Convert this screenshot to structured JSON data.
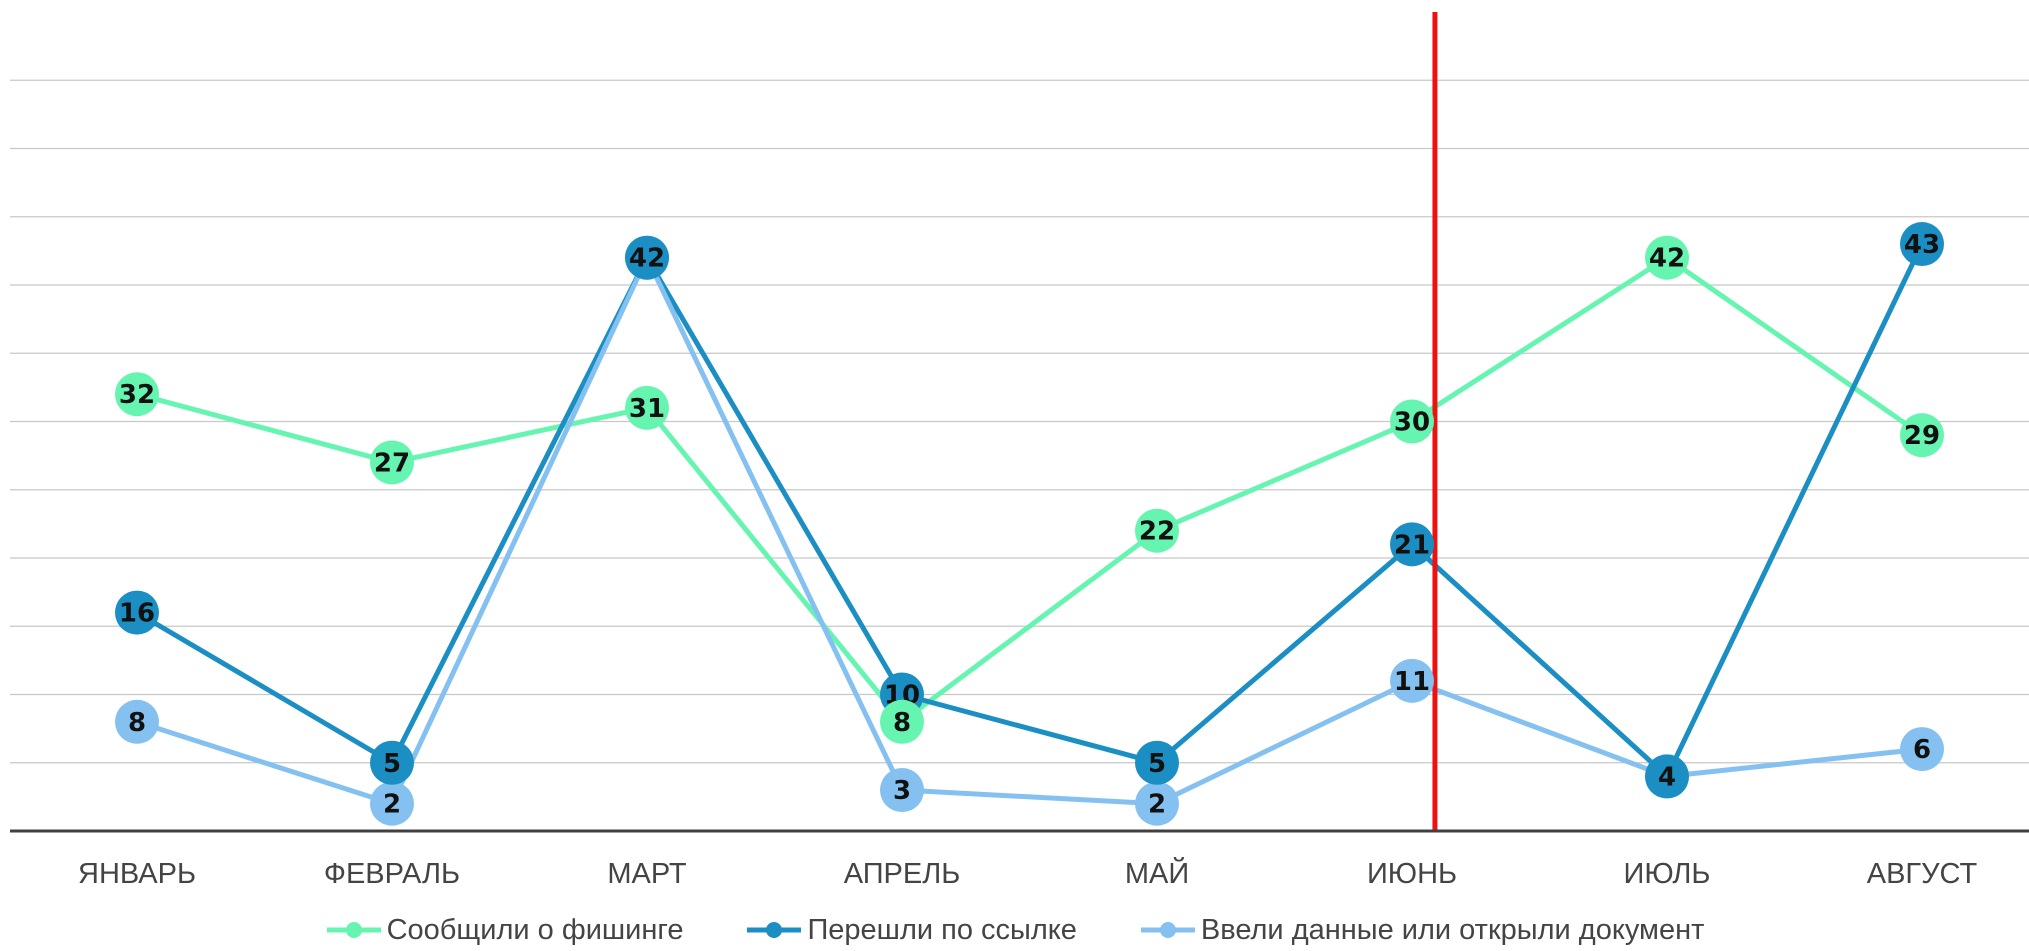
{
  "chart_data": {
    "type": "line",
    "categories": [
      "ЯНВАРЬ",
      "ФЕВРАЛЬ",
      "МАРТ",
      "АПРЕЛЬ",
      "МАЙ",
      "ИЮНЬ",
      "ИЮЛЬ",
      "АВГУСТ"
    ],
    "series": [
      {
        "name": "Сообщили о фишинге",
        "color": "#66f5b0",
        "values": [
          32,
          27,
          31,
          8,
          22,
          30,
          42,
          29
        ]
      },
      {
        "name": "Перешли по ссылке",
        "color": "#1b8fc4",
        "values": [
          16,
          5,
          42,
          10,
          5,
          21,
          4,
          43
        ]
      },
      {
        "name": "Ввели данные или открыли документ",
        "color": "#85c1f0",
        "values": [
          8,
          2,
          42,
          3,
          2,
          11,
          4,
          6
        ]
      }
    ],
    "ylim": [
      0,
      55
    ],
    "grid": true,
    "legend_position": "bottom",
    "data_labels": true,
    "marker_line": {
      "between": [
        "ИЮНЬ",
        "ИЮЛЬ"
      ],
      "color": "#ee1111"
    }
  }
}
